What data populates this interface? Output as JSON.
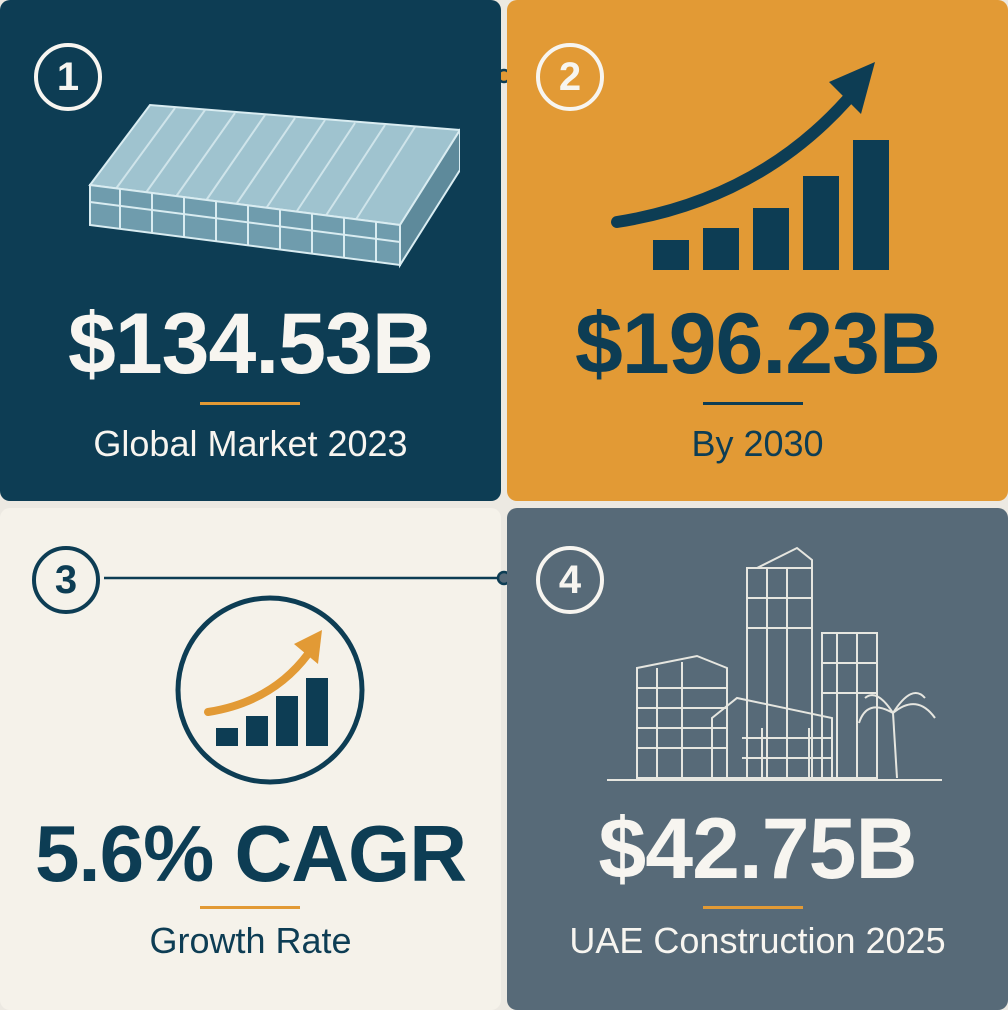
{
  "cards": [
    {
      "number": "1",
      "value": "$134.53B",
      "label": "Global Market 2023",
      "icon": "polycarbonate-sheet-icon"
    },
    {
      "number": "2",
      "value": "$196.23B",
      "label": "By 2030",
      "icon": "growth-bar-chart-icon"
    },
    {
      "number": "3",
      "value": "5.6% CAGR",
      "label": "Growth Rate",
      "icon": "growth-circle-icon"
    },
    {
      "number": "4",
      "value": "$42.75B",
      "label": "UAE Construction 2025",
      "icon": "city-buildings-icon"
    }
  ],
  "colors": {
    "navy": "#0d3d54",
    "orange": "#e29a35",
    "cream": "#f5f2ea",
    "slate": "#576a78",
    "white": "#f7f5f0"
  }
}
